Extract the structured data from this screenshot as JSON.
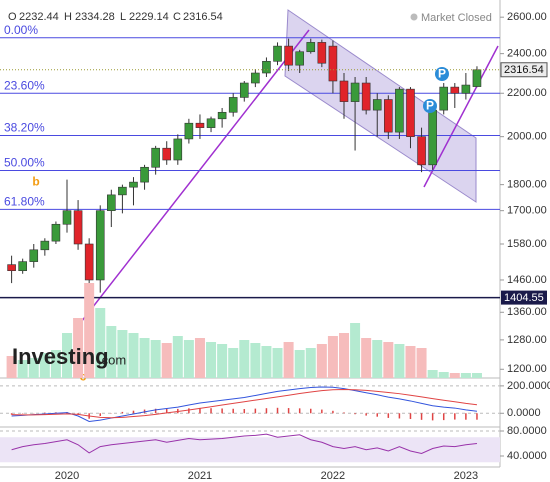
{
  "chart_data": [
    {
      "type": "candlestick",
      "ohlc_labels": [
        "O",
        "H",
        "L",
        "C"
      ],
      "market_status": "Market Closed",
      "logo": "Investing",
      "logo_suffix": ".com",
      "annotations": [
        "b",
        "c",
        "P",
        "P"
      ],
      "categories": [
        null,
        null,
        null,
        null,
        null,
        "2020",
        null,
        null,
        null,
        null,
        null,
        null,
        null,
        null,
        null,
        null,
        null,
        "2021",
        null,
        null,
        null,
        null,
        null,
        null,
        null,
        null,
        null,
        null,
        null,
        "2022",
        null,
        null,
        null,
        null,
        null,
        null,
        null,
        null,
        null,
        null,
        null,
        "2023",
        null
      ],
      "open": [
        1510,
        1490,
        1520,
        1560,
        1590,
        1650,
        1700,
        1580,
        1460,
        1700,
        1760,
        1790,
        1810,
        1870,
        1950,
        1900,
        1990,
        2060,
        2040,
        2080,
        2110,
        2180,
        2250,
        2300,
        2360,
        2440,
        2340,
        2410,
        2460,
        2440,
        2260,
        2160,
        2250,
        2120,
        2170,
        2020,
        2220,
        2000,
        1880,
        2120,
        2230,
        2200,
        2232.44
      ],
      "high": [
        1540,
        1530,
        1580,
        1600,
        1660,
        1820,
        1740,
        1600,
        1720,
        1780,
        1800,
        1830,
        1880,
        1960,
        1980,
        2010,
        2080,
        2100,
        2090,
        2130,
        2200,
        2260,
        2320,
        2380,
        2460,
        2480,
        2420,
        2480,
        2475,
        2470,
        2300,
        2280,
        2280,
        2200,
        2190,
        2230,
        2230,
        2040,
        2150,
        2250,
        2250,
        2300,
        2334.28
      ],
      "low": [
        1450,
        1480,
        1500,
        1540,
        1580,
        1620,
        1560,
        1270,
        1420,
        1640,
        1690,
        1720,
        1780,
        1840,
        1880,
        1880,
        1970,
        1990,
        2020,
        2040,
        2090,
        2160,
        2230,
        2280,
        2340,
        2310,
        2300,
        2400,
        2330,
        2200,
        2080,
        1940,
        2100,
        2000,
        1990,
        1990,
        1950,
        1850,
        1860,
        2100,
        2130,
        2170,
        2229.14
      ],
      "close": [
        1490,
        1520,
        1560,
        1590,
        1650,
        1700,
        1580,
        1460,
        1700,
        1760,
        1790,
        1810,
        1870,
        1950,
        1900,
        1990,
        2060,
        2040,
        2080,
        2110,
        2180,
        2250,
        2300,
        2360,
        2440,
        2340,
        2410,
        2460,
        2350,
        2260,
        2160,
        2250,
        2120,
        2170,
        2020,
        2220,
        2000,
        1880,
        2120,
        2230,
        2200,
        2240,
        2316.54
      ],
      "up_color": "#3a9a3a",
      "down_color": "#e0242a",
      "log_scale": true,
      "ylim": [
        1185,
        2700
      ],
      "yticks": [
        {
          "value": 2600,
          "label": "2600.00"
        },
        {
          "value": 2400,
          "label": "2400.00"
        },
        {
          "value": 2200,
          "label": "2200.00"
        },
        {
          "value": 2000,
          "label": "2000.00"
        },
        {
          "value": 1800,
          "label": "1800.00"
        },
        {
          "value": 1700,
          "label": "1700.00"
        },
        {
          "value": 1580,
          "label": "1580.00"
        },
        {
          "value": 1460,
          "label": "1460.00"
        },
        {
          "value": 1360,
          "label": "1360.00"
        },
        {
          "value": 1280,
          "label": "1280.00"
        },
        {
          "value": 1200,
          "label": "1200.00"
        }
      ],
      "fib_levels": [
        {
          "label": "0.00%",
          "price": 2485
        },
        {
          "label": "23.60%",
          "price": 2200
        },
        {
          "label": "38.20%",
          "price": 2005
        },
        {
          "label": "50.00%",
          "price": 1857
        },
        {
          "label": "61.80%",
          "price": 1705
        }
      ],
      "fib_color": "#4a4ae0",
      "support_level": 1404.55
    },
    {
      "type": "bar",
      "values": [
        22,
        18,
        20,
        25,
        28,
        45,
        60,
        95,
        70,
        52,
        48,
        45,
        40,
        38,
        35,
        42,
        38,
        40,
        36,
        34,
        30,
        38,
        35,
        32,
        30,
        36,
        28,
        30,
        34,
        42,
        45,
        55,
        40,
        38,
        36,
        34,
        32,
        30,
        8,
        6,
        5,
        5,
        5
      ],
      "up_color": "#b4ead0",
      "down_color": "#f6bcbc",
      "ylim": [
        0,
        100
      ]
    },
    {
      "type": "line",
      "series": [
        {
          "color": "#3355dd",
          "values": [
            -20,
            -15,
            -10,
            -5,
            0,
            5,
            -20,
            -60,
            -50,
            -35,
            -20,
            -5,
            10,
            25,
            35,
            45,
            60,
            75,
            85,
            95,
            105,
            115,
            130,
            145,
            160,
            170,
            180,
            188,
            192,
            190,
            180,
            165,
            150,
            135,
            118,
            105,
            90,
            72,
            55,
            45,
            38,
            25,
            15
          ]
        },
        {
          "color": "#e04444",
          "values": [
            -10,
            -12,
            -12,
            -10,
            -7,
            -4,
            -8,
            -20,
            -30,
            -33,
            -30,
            -24,
            -17,
            -8,
            3,
            13,
            24,
            36,
            48,
            60,
            72,
            84,
            96,
            108,
            120,
            132,
            144,
            155,
            165,
            172,
            174,
            172,
            167,
            160,
            152,
            143,
            132,
            120,
            107,
            95,
            84,
            72,
            62
          ]
        }
      ],
      "histogram": [
        -10,
        -3,
        2,
        5,
        7,
        9,
        -12,
        -40,
        -20,
        -2,
        10,
        19,
        27,
        33,
        32,
        32,
        36,
        39,
        37,
        35,
        33,
        31,
        34,
        37,
        40,
        38,
        36,
        33,
        27,
        18,
        6,
        -7,
        -17,
        -25,
        -34,
        -38,
        -42,
        -48,
        -52,
        -50,
        -46,
        -47,
        -47
      ],
      "histogram_color": "#e04444",
      "ylim": [
        -93,
        243
      ],
      "yticks": [
        {
          "value": 200,
          "label": "200.0000"
        },
        {
          "value": 0,
          "label": "0.0000"
        }
      ]
    },
    {
      "type": "line",
      "series": [
        {
          "color": "#9933aa",
          "values": [
            50,
            55,
            58,
            60,
            63,
            66,
            58,
            45,
            55,
            58,
            60,
            62,
            64,
            66,
            62,
            65,
            68,
            66,
            67,
            68,
            70,
            72,
            73,
            75,
            70,
            72,
            74,
            66,
            62,
            55,
            52,
            55,
            50,
            53,
            48,
            55,
            48,
            44,
            52,
            56,
            55,
            58,
            60
          ]
        }
      ],
      "band": [
        30,
        70
      ],
      "band_color": "#ece4f6",
      "ylim": [
        24,
        84.8
      ],
      "yticks": [
        {
          "value": 80,
          "label": "80.0000"
        },
        {
          "value": 40,
          "label": "40.0000"
        }
      ]
    }
  ]
}
